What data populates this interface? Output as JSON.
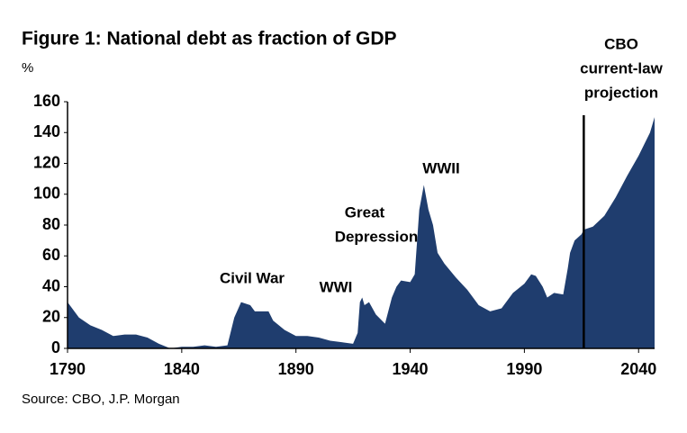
{
  "chart_data": {
    "type": "area",
    "title": "Figure 1: National debt as fraction of GDP",
    "y_unit": "%",
    "source": "Source: CBO, J.P. Morgan",
    "color": "#1f3d6e",
    "x": [
      1790,
      1795,
      1800,
      1805,
      1810,
      1815,
      1820,
      1825,
      1830,
      1835,
      1840,
      1845,
      1850,
      1855,
      1860,
      1863,
      1866,
      1870,
      1872,
      1878,
      1880,
      1885,
      1890,
      1895,
      1900,
      1905,
      1910,
      1915,
      1917,
      1918,
      1919,
      1920,
      1922,
      1925,
      1929,
      1932,
      1934,
      1936,
      1940,
      1942,
      1944,
      1946,
      1948,
      1950,
      1952,
      1955,
      1960,
      1965,
      1970,
      1975,
      1980,
      1985,
      1990,
      1993,
      1995,
      1998,
      2000,
      2003,
      2007,
      2009,
      2010,
      2012,
      2015,
      2016,
      2020,
      2025,
      2030,
      2035,
      2040,
      2045,
      2047
    ],
    "values": [
      30,
      20,
      15,
      12,
      8,
      9,
      9,
      7,
      3,
      0,
      1,
      1,
      2,
      1,
      2,
      20,
      30,
      28,
      24,
      24,
      18,
      12,
      8,
      8,
      7,
      5,
      4,
      3,
      10,
      30,
      33,
      28,
      30,
      22,
      16,
      33,
      40,
      44,
      43,
      48,
      90,
      106,
      90,
      80,
      62,
      55,
      46,
      38,
      28,
      24,
      26,
      36,
      42,
      48,
      47,
      40,
      33,
      36,
      35,
      52,
      62,
      70,
      74,
      77,
      79,
      86,
      98,
      112,
      125,
      140,
      150
    ],
    "xlim": [
      1790,
      2047
    ],
    "ylim": [
      0,
      160
    ],
    "xticks": [
      1790,
      1840,
      1890,
      1940,
      1990,
      2040
    ],
    "yticks": [
      0,
      20,
      40,
      60,
      80,
      100,
      120,
      140,
      160
    ],
    "projection_start": 2016,
    "annotations": [
      "Civil War",
      "WWI",
      "Great",
      "Depression",
      "WWII",
      "CBO",
      "current-law",
      "projection"
    ]
  }
}
